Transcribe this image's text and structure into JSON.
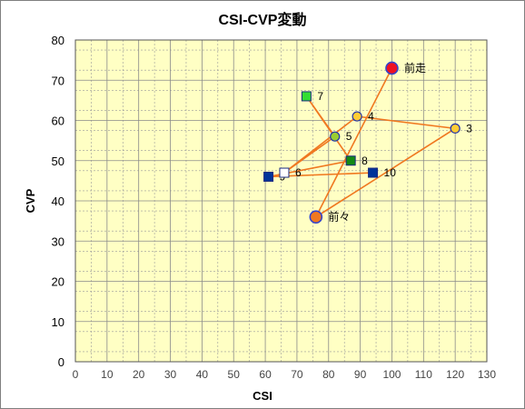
{
  "chart_data": {
    "type": "scatter",
    "title": "CSI-CVP変動",
    "xlabel": "CSI",
    "ylabel": "CVP",
    "xlim": [
      0,
      130
    ],
    "ylim": [
      0,
      80
    ],
    "xticks": [
      0,
      10,
      20,
      30,
      40,
      50,
      60,
      70,
      80,
      90,
      100,
      110,
      120,
      130
    ],
    "yticks": [
      0,
      10,
      20,
      30,
      40,
      50,
      60,
      70,
      80
    ],
    "grid": true,
    "plot_background": "#ffffc4",
    "line_color": "#f07820",
    "points": [
      {
        "label": "10",
        "x": 94,
        "y": 47,
        "marker": "square",
        "fill": "#003399"
      },
      {
        "label": "9",
        "x": 61,
        "y": 46,
        "marker": "square",
        "fill": "#003399"
      },
      {
        "label": "8",
        "x": 87,
        "y": 50,
        "marker": "square",
        "fill": "#138a13"
      },
      {
        "label": "7",
        "x": 73,
        "y": 66,
        "marker": "square",
        "fill": "#33dd33"
      },
      {
        "label": "6",
        "x": 66,
        "y": 47,
        "marker": "square",
        "fill": "#ffffff"
      },
      {
        "label": "5",
        "x": 82,
        "y": 56,
        "marker": "circle",
        "fill": "#9acd32"
      },
      {
        "label": "4",
        "x": 89,
        "y": 61,
        "marker": "circle",
        "fill": "#ffcc33"
      },
      {
        "label": "3",
        "x": 120,
        "y": 58,
        "marker": "circle",
        "fill": "#ffcc33"
      },
      {
        "label": "前々",
        "x": 76,
        "y": 36,
        "marker": "circle-large",
        "fill": "#f07820"
      },
      {
        "label": "前走",
        "x": 100,
        "y": 73,
        "marker": "circle-large",
        "fill": "#ee1122"
      }
    ],
    "path_order": [
      "10",
      "9",
      "8",
      "7",
      "5",
      "6",
      "4",
      "3",
      "前々",
      "前走"
    ]
  }
}
